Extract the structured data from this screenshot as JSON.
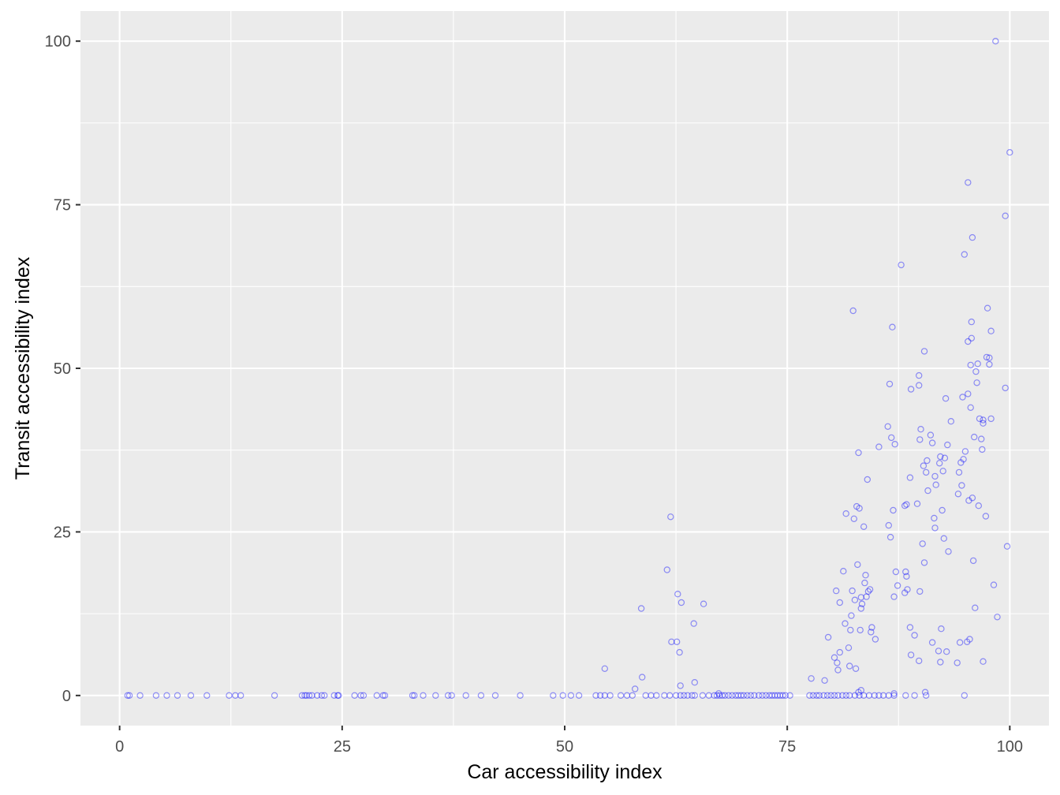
{
  "chart_data": {
    "type": "scatter",
    "title": "",
    "xlabel": "Car accessibility index",
    "ylabel": "Transit accessibility index",
    "xlim": [
      -4.4,
      104.4
    ],
    "ylim": [
      -4.6,
      104.6
    ],
    "xticks": [
      0,
      25,
      50,
      75,
      100
    ],
    "yticks": [
      0,
      25,
      50,
      75,
      100
    ],
    "grid": true,
    "legend": "none",
    "colors": {
      "panel": "#ebebeb",
      "grid": "#ffffff",
      "point": "#0000ff",
      "tick_text": "#4d4d4d",
      "tick_mark": "#333333",
      "axis_title": "#000000"
    },
    "series": [
      {
        "points": [
          [
            0.9,
            0
          ],
          [
            1.1,
            0
          ],
          [
            2.3,
            0
          ],
          [
            4.1,
            0
          ],
          [
            5.3,
            0
          ],
          [
            6.5,
            0
          ],
          [
            8.0,
            0
          ],
          [
            9.8,
            0
          ],
          [
            12.3,
            0
          ],
          [
            13.0,
            0
          ],
          [
            13.6,
            0
          ],
          [
            17.4,
            0
          ],
          [
            20.5,
            0
          ],
          [
            20.8,
            0
          ],
          [
            21.0,
            0
          ],
          [
            21.3,
            0
          ],
          [
            21.6,
            0
          ],
          [
            22.2,
            0
          ],
          [
            22.7,
            0
          ],
          [
            23.0,
            0
          ],
          [
            24.1,
            0
          ],
          [
            24.5,
            0
          ],
          [
            24.6,
            0
          ],
          [
            26.4,
            0
          ],
          [
            27.1,
            0
          ],
          [
            27.4,
            0
          ],
          [
            28.9,
            0
          ],
          [
            29.6,
            0
          ],
          [
            29.8,
            0
          ],
          [
            32.9,
            0
          ],
          [
            33.1,
            0
          ],
          [
            34.1,
            0
          ],
          [
            35.5,
            0
          ],
          [
            36.9,
            0
          ],
          [
            37.3,
            0
          ],
          [
            38.9,
            0
          ],
          [
            40.6,
            0
          ],
          [
            42.2,
            0
          ],
          [
            45.0,
            0
          ],
          [
            48.7,
            0
          ],
          [
            49.8,
            0
          ],
          [
            50.7,
            0
          ],
          [
            51.6,
            0
          ],
          [
            53.5,
            0
          ],
          [
            54.0,
            0
          ],
          [
            54.5,
            0
          ],
          [
            55.1,
            0
          ],
          [
            56.3,
            0
          ],
          [
            57.0,
            0
          ],
          [
            57.6,
            0
          ],
          [
            59.1,
            0
          ],
          [
            59.7,
            0
          ],
          [
            60.3,
            0
          ],
          [
            61.2,
            0
          ],
          [
            61.8,
            0
          ],
          [
            62.5,
            0
          ],
          [
            63.0,
            0
          ],
          [
            63.4,
            0
          ],
          [
            63.8,
            0
          ],
          [
            64.3,
            0
          ],
          [
            64.6,
            0
          ],
          [
            65.5,
            0
          ],
          [
            66.2,
            0
          ],
          [
            66.8,
            0
          ],
          [
            67.1,
            0
          ],
          [
            67.4,
            0
          ],
          [
            67.7,
            0
          ],
          [
            68.0,
            0
          ],
          [
            68.4,
            0
          ],
          [
            68.8,
            0
          ],
          [
            69.2,
            0
          ],
          [
            69.5,
            0
          ],
          [
            69.8,
            0
          ],
          [
            70.1,
            0
          ],
          [
            70.5,
            0
          ],
          [
            70.9,
            0
          ],
          [
            71.3,
            0
          ],
          [
            71.8,
            0
          ],
          [
            72.2,
            0
          ],
          [
            72.6,
            0
          ],
          [
            73.0,
            0
          ],
          [
            73.3,
            0
          ],
          [
            73.6,
            0
          ],
          [
            73.9,
            0
          ],
          [
            74.2,
            0
          ],
          [
            74.5,
            0
          ],
          [
            74.8,
            0
          ],
          [
            75.3,
            0
          ],
          [
            77.5,
            0
          ],
          [
            77.9,
            0
          ],
          [
            78.3,
            0
          ],
          [
            78.6,
            0
          ],
          [
            79.1,
            0
          ],
          [
            79.5,
            0
          ],
          [
            79.9,
            0
          ],
          [
            80.3,
            0
          ],
          [
            80.7,
            0
          ],
          [
            81.2,
            0
          ],
          [
            81.6,
            0
          ],
          [
            82.0,
            0
          ],
          [
            82.6,
            0
          ],
          [
            83.1,
            0
          ],
          [
            83.6,
            0
          ],
          [
            84.2,
            0
          ],
          [
            84.8,
            0
          ],
          [
            85.3,
            0
          ],
          [
            85.8,
            0
          ],
          [
            86.4,
            0
          ],
          [
            87.0,
            0
          ],
          [
            88.3,
            0
          ],
          [
            89.3,
            0
          ],
          [
            90.6,
            0
          ],
          [
            94.9,
            0
          ],
          [
            54.5,
            4.1
          ],
          [
            57.9,
            1.0
          ],
          [
            58.7,
            2.8
          ],
          [
            63.0,
            1.5
          ],
          [
            64.6,
            2.0
          ],
          [
            67.3,
            0.3
          ],
          [
            77.7,
            2.6
          ],
          [
            79.2,
            2.3
          ],
          [
            83.0,
            0.5
          ],
          [
            83.3,
            0.8
          ],
          [
            87.0,
            0.3
          ],
          [
            90.5,
            0.5
          ],
          [
            58.6,
            13.3
          ],
          [
            61.5,
            19.2
          ],
          [
            61.9,
            27.3
          ],
          [
            62.0,
            8.2
          ],
          [
            62.6,
            8.2
          ],
          [
            62.7,
            15.5
          ],
          [
            62.9,
            6.6
          ],
          [
            63.1,
            14.2
          ],
          [
            64.5,
            11.0
          ],
          [
            65.6,
            14.0
          ],
          [
            79.6,
            8.9
          ],
          [
            80.3,
            5.8
          ],
          [
            80.5,
            16.0
          ],
          [
            80.6,
            5.0
          ],
          [
            80.7,
            3.9
          ],
          [
            80.9,
            6.6
          ],
          [
            80.9,
            14.2
          ],
          [
            81.3,
            19.0
          ],
          [
            81.5,
            11.0
          ],
          [
            81.6,
            27.8
          ],
          [
            81.9,
            7.3
          ],
          [
            82.0,
            4.5
          ],
          [
            82.1,
            10.0
          ],
          [
            82.2,
            12.2
          ],
          [
            82.3,
            16.0
          ],
          [
            82.4,
            58.8
          ],
          [
            82.5,
            27.0
          ],
          [
            82.6,
            14.6
          ],
          [
            82.7,
            4.1
          ],
          [
            82.8,
            28.9
          ],
          [
            82.9,
            20.0
          ],
          [
            83.0,
            37.1
          ],
          [
            83.1,
            28.6
          ],
          [
            83.2,
            10.0
          ],
          [
            83.3,
            13.3
          ],
          [
            83.3,
            15.0
          ],
          [
            83.4,
            14.0
          ],
          [
            83.6,
            25.8
          ],
          [
            83.7,
            17.2
          ],
          [
            83.8,
            18.4
          ],
          [
            83.9,
            15.1
          ],
          [
            84.0,
            33.0
          ],
          [
            84.1,
            15.9
          ],
          [
            84.3,
            16.2
          ],
          [
            84.4,
            9.7
          ],
          [
            84.5,
            10.4
          ],
          [
            84.9,
            8.6
          ],
          [
            85.3,
            38.0
          ],
          [
            86.3,
            41.1
          ],
          [
            86.4,
            26.0
          ],
          [
            86.5,
            47.6
          ],
          [
            86.6,
            24.2
          ],
          [
            86.7,
            39.4
          ],
          [
            86.8,
            56.3
          ],
          [
            86.9,
            28.3
          ],
          [
            87.0,
            15.1
          ],
          [
            87.1,
            38.4
          ],
          [
            87.2,
            18.9
          ],
          [
            87.4,
            16.8
          ],
          [
            87.8,
            65.8
          ],
          [
            88.2,
            15.7
          ],
          [
            88.2,
            29.0
          ],
          [
            88.3,
            18.9
          ],
          [
            88.4,
            18.2
          ],
          [
            88.4,
            29.2
          ],
          [
            88.5,
            16.2
          ],
          [
            88.8,
            33.3
          ],
          [
            88.8,
            10.4
          ],
          [
            88.9,
            46.8
          ],
          [
            88.9,
            6.2
          ],
          [
            89.3,
            9.2
          ],
          [
            89.6,
            29.3
          ],
          [
            89.8,
            48.9
          ],
          [
            89.8,
            47.4
          ],
          [
            89.8,
            5.3
          ],
          [
            89.9,
            39.1
          ],
          [
            89.9,
            15.9
          ],
          [
            90.0,
            40.7
          ],
          [
            90.2,
            23.2
          ],
          [
            90.3,
            35.1
          ],
          [
            90.4,
            20.3
          ],
          [
            90.4,
            52.6
          ],
          [
            90.6,
            34.1
          ],
          [
            90.7,
            35.9
          ],
          [
            90.8,
            31.3
          ],
          [
            91.1,
            39.8
          ],
          [
            91.3,
            8.1
          ],
          [
            91.3,
            38.6
          ],
          [
            91.5,
            27.1
          ],
          [
            91.6,
            33.5
          ],
          [
            91.6,
            25.6
          ],
          [
            91.7,
            32.2
          ],
          [
            92.0,
            6.8
          ],
          [
            92.1,
            35.5
          ],
          [
            92.2,
            36.5
          ],
          [
            92.2,
            5.1
          ],
          [
            92.3,
            10.2
          ],
          [
            92.4,
            28.3
          ],
          [
            92.5,
            34.3
          ],
          [
            92.6,
            24.0
          ],
          [
            92.7,
            36.3
          ],
          [
            92.8,
            45.4
          ],
          [
            92.9,
            6.7
          ],
          [
            93.0,
            38.3
          ],
          [
            93.1,
            22.0
          ],
          [
            93.4,
            41.9
          ],
          [
            94.1,
            5.0
          ],
          [
            94.2,
            30.8
          ],
          [
            94.3,
            34.1
          ],
          [
            94.4,
            8.1
          ],
          [
            94.5,
            35.6
          ],
          [
            94.6,
            32.1
          ],
          [
            94.7,
            45.6
          ],
          [
            94.8,
            36.1
          ],
          [
            94.9,
            67.4
          ],
          [
            95.0,
            37.3
          ],
          [
            95.2,
            8.2
          ],
          [
            95.3,
            78.4
          ],
          [
            95.3,
            54.1
          ],
          [
            95.3,
            46.1
          ],
          [
            95.4,
            29.8
          ],
          [
            95.5,
            8.6
          ],
          [
            95.6,
            50.5
          ],
          [
            95.6,
            44.0
          ],
          [
            95.7,
            57.1
          ],
          [
            95.7,
            54.6
          ],
          [
            95.8,
            30.2
          ],
          [
            95.8,
            70.0
          ],
          [
            95.9,
            20.6
          ],
          [
            96.0,
            39.5
          ],
          [
            96.1,
            13.4
          ],
          [
            96.2,
            49.5
          ],
          [
            96.3,
            47.8
          ],
          [
            96.4,
            50.7
          ],
          [
            96.5,
            29.0
          ],
          [
            96.6,
            42.3
          ],
          [
            96.8,
            39.2
          ],
          [
            96.9,
            37.6
          ],
          [
            97.0,
            42.1
          ],
          [
            97.0,
            41.6
          ],
          [
            97.0,
            5.2
          ],
          [
            97.3,
            27.4
          ],
          [
            97.4,
            51.7
          ],
          [
            97.5,
            59.2
          ],
          [
            97.7,
            51.6
          ],
          [
            97.7,
            50.6
          ],
          [
            97.9,
            42.3
          ],
          [
            97.9,
            55.7
          ],
          [
            98.2,
            16.9
          ],
          [
            98.4,
            100.0
          ],
          [
            98.6,
            12.0
          ],
          [
            99.5,
            73.3
          ],
          [
            99.5,
            47.0
          ],
          [
            99.7,
            22.8
          ],
          [
            100.0,
            83.0
          ]
        ]
      }
    ]
  }
}
